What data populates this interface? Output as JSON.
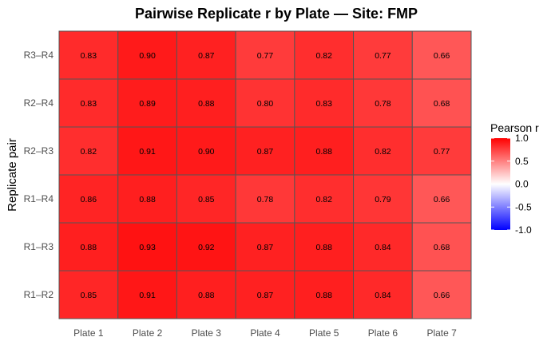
{
  "chart_data": {
    "type": "heatmap",
    "title": "Pairwise Replicate r by Plate — Site: FMP",
    "xlabel": "",
    "ylabel": "Replicate pair",
    "x_categories": [
      "Plate 1",
      "Plate 2",
      "Plate 3",
      "Plate 4",
      "Plate 5",
      "Plate 6",
      "Plate 7"
    ],
    "y_categories": [
      "R3–R4",
      "R2–R4",
      "R2–R3",
      "R1–R4",
      "R1–R3",
      "R1–R2"
    ],
    "values": [
      [
        0.83,
        0.9,
        0.87,
        0.77,
        0.82,
        0.77,
        0.66
      ],
      [
        0.83,
        0.89,
        0.88,
        0.8,
        0.83,
        0.78,
        0.68
      ],
      [
        0.82,
        0.91,
        0.9,
        0.87,
        0.88,
        0.82,
        0.77
      ],
      [
        0.86,
        0.88,
        0.85,
        0.78,
        0.82,
        0.79,
        0.66
      ],
      [
        0.88,
        0.93,
        0.92,
        0.87,
        0.88,
        0.84,
        0.68
      ],
      [
        0.85,
        0.91,
        0.88,
        0.87,
        0.88,
        0.84,
        0.66
      ]
    ],
    "value_labels": [
      [
        "0.83",
        "0.90",
        "0.87",
        "0.77",
        "0.82",
        "0.77",
        "0.66"
      ],
      [
        "0.83",
        "0.89",
        "0.88",
        "0.80",
        "0.83",
        "0.78",
        "0.68"
      ],
      [
        "0.82",
        "0.91",
        "0.90",
        "0.87",
        "0.88",
        "0.82",
        "0.77"
      ],
      [
        "0.86",
        "0.88",
        "0.85",
        "0.78",
        "0.82",
        "0.79",
        "0.66"
      ],
      [
        "0.88",
        "0.93",
        "0.92",
        "0.87",
        "0.88",
        "0.84",
        "0.68"
      ],
      [
        "0.85",
        "0.91",
        "0.88",
        "0.87",
        "0.88",
        "0.84",
        "0.66"
      ]
    ],
    "legend": {
      "title": "Pearson r",
      "placement": "right",
      "range": [
        -1.0,
        1.0
      ],
      "ticks": [
        1.0,
        0.5,
        0.0,
        -0.5,
        -1.0
      ],
      "tick_labels": [
        "1.0",
        "0.5",
        "0.0",
        "-0.5",
        "-1.0"
      ],
      "colors": {
        "low": "#0000ff",
        "mid": "#ffffff",
        "high": "#ff0000"
      }
    },
    "grid": false,
    "cell_border_color": "#555555"
  }
}
